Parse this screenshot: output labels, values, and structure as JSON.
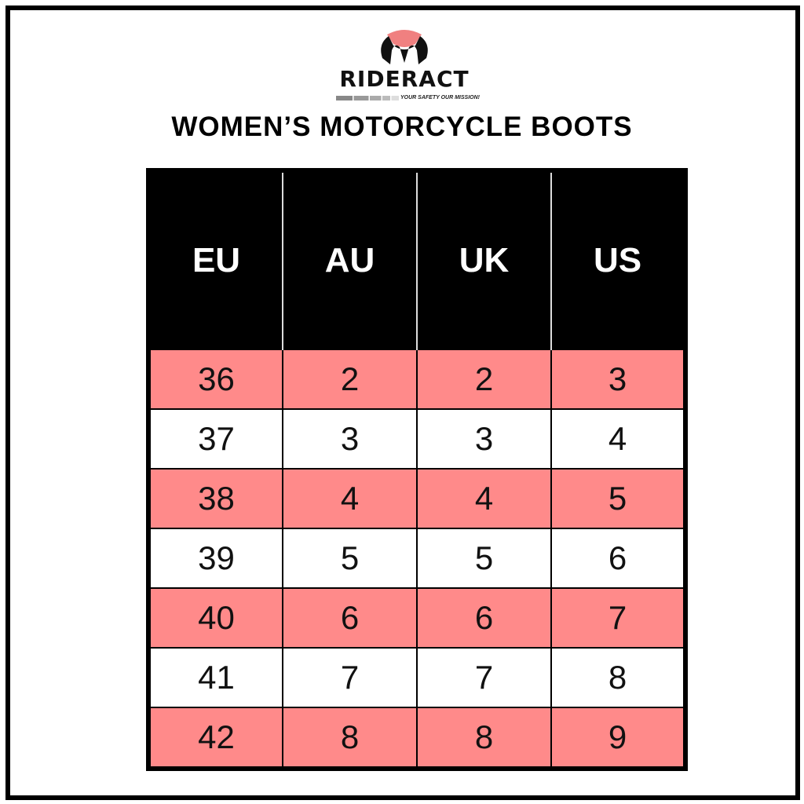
{
  "brand": {
    "name": "RIDERACT",
    "tagline": "YOUR SAFETY OUR MISSION!",
    "accent": "#f08080"
  },
  "title": "WOMEN’S MOTORCYCLE BOOTS",
  "table": {
    "headers": [
      "EU",
      "AU",
      "UK",
      "US"
    ],
    "rows": [
      [
        "36",
        "2",
        "2",
        "3"
      ],
      [
        "37",
        "3",
        "3",
        "4"
      ],
      [
        "38",
        "4",
        "4",
        "5"
      ],
      [
        "39",
        "5",
        "5",
        "6"
      ],
      [
        "40",
        "6",
        "6",
        "7"
      ],
      [
        "41",
        "7",
        "7",
        "8"
      ],
      [
        "42",
        "8",
        "8",
        "9"
      ]
    ],
    "stripe_color": "#ff8a8a"
  }
}
